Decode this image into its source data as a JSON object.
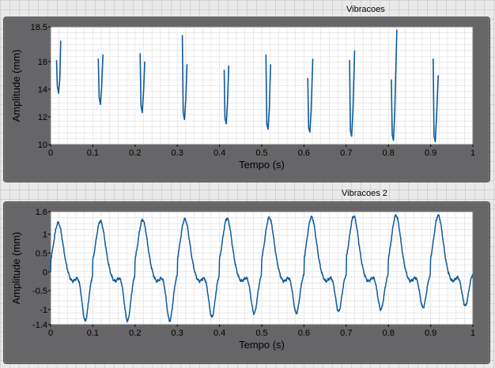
{
  "background": {
    "color": "#e9e9e9",
    "grid_color": "#d2d2d2"
  },
  "panel_color": "#666668",
  "plot_background": "#ffffff",
  "plot_grid_color": "#dcdcdc",
  "trace_color": "#0e5a9e",
  "chart_data": [
    {
      "type": "line",
      "title": "Vibracoes",
      "xlabel": "Tempo (s)",
      "ylabel": "Amplitude (mm)",
      "xlim": [
        0,
        1
      ],
      "ylim": [
        10,
        18.5
      ],
      "grid": true,
      "x_ticks": [
        "0",
        "0.1",
        "0.2",
        "0.3",
        "0.4",
        "0.5",
        "0.6",
        "0.7",
        "0.8",
        "0.9",
        "1"
      ],
      "y_ticks": [
        "10",
        "12",
        "14",
        "16",
        "18.5"
      ],
      "series": [
        {
          "segments": [
            {
              "x": [
                0.014,
                0.016,
                0.019,
                0.022,
                0.024
              ],
              "y": [
                16.1,
                14.2,
                13.7,
                14.8,
                17.5
              ]
            },
            {
              "x": [
                0.113,
                0.115,
                0.118,
                0.121,
                0.124
              ],
              "y": [
                16.2,
                13.4,
                12.9,
                14.2,
                16.5
              ]
            },
            {
              "x": [
                0.212,
                0.214,
                0.217,
                0.22,
                0.223
              ],
              "y": [
                16.6,
                12.8,
                12.3,
                13.8,
                16.0
              ]
            },
            {
              "x": [
                0.312,
                0.314,
                0.317,
                0.32,
                0.323
              ],
              "y": [
                17.9,
                12.3,
                11.8,
                13.2,
                15.8
              ]
            },
            {
              "x": [
                0.411,
                0.413,
                0.416,
                0.419,
                0.422
              ],
              "y": [
                15.4,
                11.9,
                11.5,
                13.0,
                15.7
              ]
            },
            {
              "x": [
                0.51,
                0.512,
                0.515,
                0.518,
                0.521
              ],
              "y": [
                16.5,
                11.5,
                11.1,
                12.6,
                15.8
              ]
            },
            {
              "x": [
                0.609,
                0.611,
                0.614,
                0.617,
                0.621
              ],
              "y": [
                14.8,
                11.2,
                10.9,
                12.5,
                16.2
              ]
            },
            {
              "x": [
                0.708,
                0.71,
                0.713,
                0.716,
                0.72
              ],
              "y": [
                16.1,
                11.0,
                10.6,
                12.4,
                16.8
              ]
            },
            {
              "x": [
                0.807,
                0.809,
                0.812,
                0.815,
                0.82
              ],
              "y": [
                14.7,
                10.7,
                10.3,
                12.3,
                18.3
              ]
            },
            {
              "x": [
                0.906,
                0.908,
                0.911,
                0.914,
                0.918
              ],
              "y": [
                16.2,
                10.6,
                10.2,
                12.0,
                15.0
              ]
            }
          ]
        }
      ]
    },
    {
      "type": "line",
      "title": "Vibracoes 2",
      "xlabel": "Tempo (s)",
      "ylabel": "Amplitude (mm)",
      "xlim": [
        0,
        1
      ],
      "ylim": [
        -1.4,
        1.6
      ],
      "grid": true,
      "x_ticks": [
        "0",
        "0.1",
        "0.2",
        "0.3",
        "0.4",
        "0.5",
        "0.6",
        "0.7",
        "0.8",
        "0.9",
        "1"
      ],
      "y_ticks": [
        "-1.4",
        "-1",
        "-0.5",
        "0",
        "0.5",
        "1",
        "1.6"
      ],
      "period": 0.1,
      "series": [
        {
          "peak_amplitudes": [
            1.3,
            1.35,
            1.38,
            1.4,
            1.42,
            1.44,
            1.46,
            1.48,
            1.5,
            1.5
          ],
          "trough_values": [
            -1.3,
            -1.3,
            -1.3,
            -1.2,
            -1.1,
            -1.1,
            -1.05,
            -1.0,
            -0.95,
            -0.9
          ]
        }
      ]
    }
  ]
}
